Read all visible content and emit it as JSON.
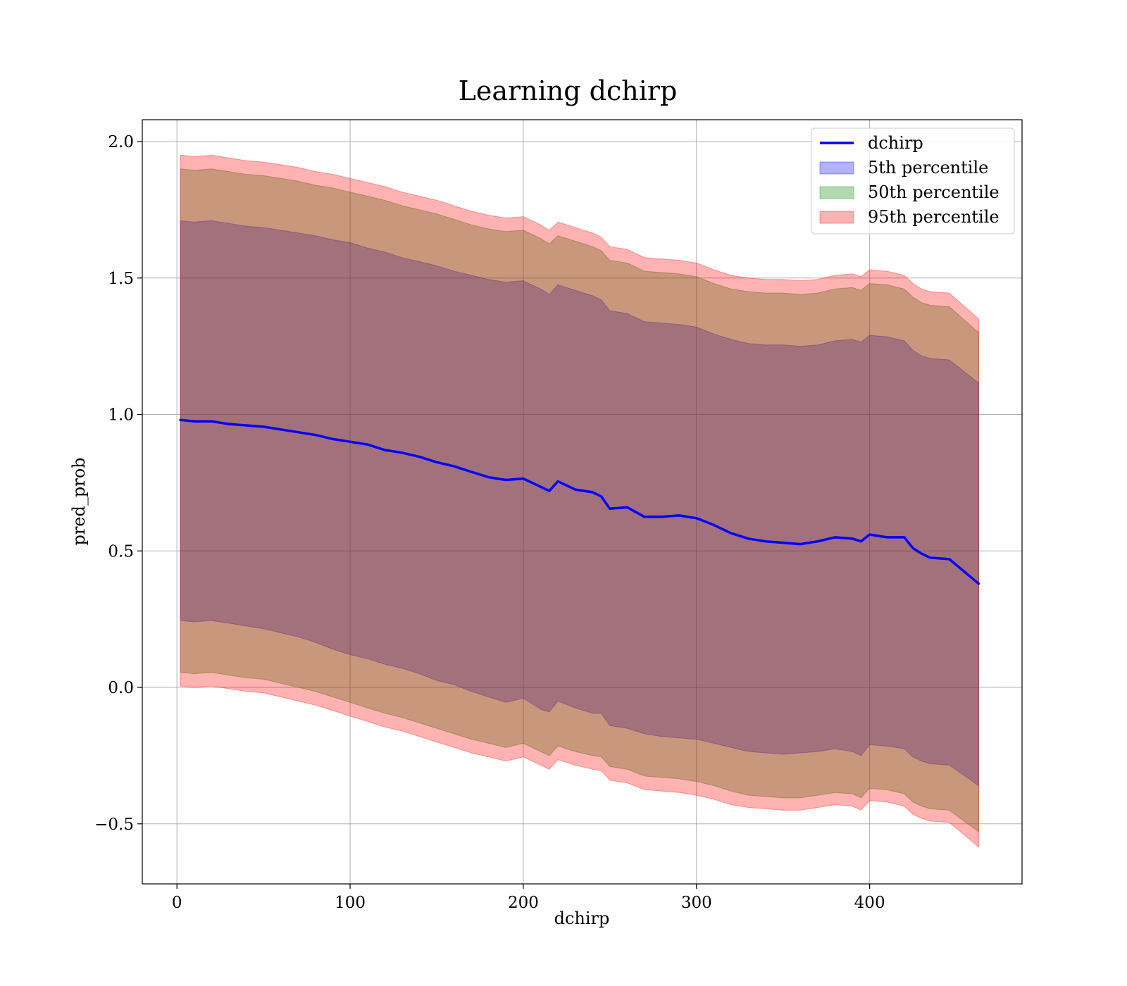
{
  "chart_data": {
    "type": "line",
    "title": "Learning dchirp",
    "xlabel": "dchirp",
    "ylabel": "pred_prob",
    "xlim": [
      -20,
      488
    ],
    "ylim": [
      -0.72,
      2.08
    ],
    "xticks": [
      0,
      100,
      200,
      300,
      400
    ],
    "xtick_labels": [
      "0",
      "100",
      "200",
      "300",
      "400"
    ],
    "yticks": [
      -0.5,
      0.0,
      0.5,
      1.0,
      1.5,
      2.0
    ],
    "ytick_labels": [
      "−0.5",
      "0.0",
      "0.5",
      "1.0",
      "1.5",
      "2.0"
    ],
    "grid": true,
    "legend_position": "upper right",
    "x": [
      2,
      10,
      20,
      30,
      40,
      50,
      60,
      70,
      80,
      90,
      100,
      110,
      120,
      130,
      140,
      150,
      160,
      170,
      180,
      190,
      200,
      210,
      215,
      220,
      230,
      240,
      245,
      250,
      260,
      270,
      280,
      290,
      300,
      310,
      320,
      330,
      340,
      350,
      360,
      370,
      380,
      390,
      395,
      400,
      410,
      420,
      425,
      430,
      435,
      446,
      463
    ],
    "series": [
      {
        "name": "dchirp",
        "kind": "line",
        "color": "#0000ff",
        "values": [
          0.98,
          0.975,
          0.975,
          0.965,
          0.96,
          0.955,
          0.945,
          0.935,
          0.925,
          0.91,
          0.9,
          0.89,
          0.87,
          0.86,
          0.845,
          0.825,
          0.81,
          0.79,
          0.77,
          0.76,
          0.765,
          0.735,
          0.72,
          0.755,
          0.725,
          0.715,
          0.7,
          0.655,
          0.66,
          0.625,
          0.625,
          0.63,
          0.62,
          0.595,
          0.565,
          0.545,
          0.535,
          0.53,
          0.525,
          0.535,
          0.55,
          0.545,
          0.535,
          0.56,
          0.55,
          0.55,
          0.51,
          0.49,
          0.475,
          0.47,
          0.38
        ]
      },
      {
        "name": "5th percentile",
        "kind": "band",
        "color": "#0000ff",
        "opacity": 0.3,
        "lower": [
          0.245,
          0.24,
          0.245,
          0.235,
          0.225,
          0.215,
          0.2,
          0.185,
          0.165,
          0.14,
          0.12,
          0.105,
          0.085,
          0.07,
          0.05,
          0.025,
          0.01,
          -0.015,
          -0.035,
          -0.055,
          -0.04,
          -0.08,
          -0.09,
          -0.05,
          -0.075,
          -0.095,
          -0.095,
          -0.14,
          -0.15,
          -0.17,
          -0.18,
          -0.185,
          -0.19,
          -0.205,
          -0.22,
          -0.235,
          -0.24,
          -0.245,
          -0.24,
          -0.235,
          -0.225,
          -0.235,
          -0.25,
          -0.21,
          -0.215,
          -0.225,
          -0.255,
          -0.27,
          -0.28,
          -0.285,
          -0.36
        ],
        "upper": [
          1.71,
          1.705,
          1.71,
          1.7,
          1.69,
          1.685,
          1.675,
          1.665,
          1.655,
          1.64,
          1.63,
          1.61,
          1.595,
          1.575,
          1.56,
          1.545,
          1.525,
          1.51,
          1.495,
          1.485,
          1.49,
          1.46,
          1.44,
          1.475,
          1.455,
          1.435,
          1.42,
          1.38,
          1.37,
          1.34,
          1.335,
          1.33,
          1.32,
          1.295,
          1.275,
          1.26,
          1.255,
          1.255,
          1.25,
          1.255,
          1.27,
          1.275,
          1.265,
          1.29,
          1.285,
          1.27,
          1.235,
          1.215,
          1.205,
          1.2,
          1.115
        ]
      },
      {
        "name": "50th percentile",
        "kind": "band",
        "color": "#008000",
        "opacity": 0.3,
        "lower": [
          0.055,
          0.05,
          0.055,
          0.045,
          0.035,
          0.03,
          0.015,
          0.0,
          -0.015,
          -0.035,
          -0.055,
          -0.075,
          -0.095,
          -0.11,
          -0.13,
          -0.15,
          -0.17,
          -0.19,
          -0.205,
          -0.22,
          -0.205,
          -0.235,
          -0.25,
          -0.215,
          -0.235,
          -0.25,
          -0.255,
          -0.29,
          -0.3,
          -0.325,
          -0.33,
          -0.335,
          -0.345,
          -0.36,
          -0.38,
          -0.395,
          -0.4,
          -0.405,
          -0.405,
          -0.395,
          -0.385,
          -0.39,
          -0.405,
          -0.37,
          -0.375,
          -0.39,
          -0.42,
          -0.435,
          -0.445,
          -0.45,
          -0.53
        ],
        "upper": [
          1.9,
          1.895,
          1.9,
          1.89,
          1.88,
          1.875,
          1.865,
          1.855,
          1.84,
          1.83,
          1.815,
          1.8,
          1.785,
          1.765,
          1.75,
          1.735,
          1.715,
          1.695,
          1.68,
          1.67,
          1.675,
          1.645,
          1.625,
          1.655,
          1.635,
          1.615,
          1.6,
          1.565,
          1.555,
          1.525,
          1.52,
          1.515,
          1.505,
          1.48,
          1.46,
          1.45,
          1.445,
          1.445,
          1.44,
          1.445,
          1.46,
          1.465,
          1.455,
          1.48,
          1.475,
          1.46,
          1.43,
          1.41,
          1.4,
          1.395,
          1.3
        ]
      },
      {
        "name": "95th percentile",
        "kind": "band",
        "color": "#ff0000",
        "opacity": 0.3,
        "lower": [
          0.005,
          0.0,
          0.005,
          -0.005,
          -0.015,
          -0.02,
          -0.035,
          -0.05,
          -0.065,
          -0.085,
          -0.105,
          -0.125,
          -0.145,
          -0.16,
          -0.18,
          -0.2,
          -0.22,
          -0.24,
          -0.255,
          -0.27,
          -0.255,
          -0.285,
          -0.3,
          -0.265,
          -0.285,
          -0.3,
          -0.305,
          -0.34,
          -0.35,
          -0.375,
          -0.38,
          -0.385,
          -0.395,
          -0.41,
          -0.43,
          -0.44,
          -0.445,
          -0.45,
          -0.45,
          -0.44,
          -0.43,
          -0.435,
          -0.45,
          -0.415,
          -0.42,
          -0.435,
          -0.465,
          -0.48,
          -0.49,
          -0.495,
          -0.585
        ],
        "upper": [
          1.95,
          1.945,
          1.95,
          1.94,
          1.93,
          1.925,
          1.915,
          1.905,
          1.89,
          1.88,
          1.865,
          1.85,
          1.835,
          1.815,
          1.8,
          1.785,
          1.765,
          1.745,
          1.73,
          1.72,
          1.725,
          1.695,
          1.675,
          1.705,
          1.685,
          1.665,
          1.65,
          1.615,
          1.605,
          1.575,
          1.57,
          1.565,
          1.555,
          1.53,
          1.51,
          1.5,
          1.495,
          1.495,
          1.49,
          1.495,
          1.51,
          1.515,
          1.505,
          1.53,
          1.525,
          1.51,
          1.48,
          1.46,
          1.45,
          1.445,
          1.35
        ]
      }
    ]
  }
}
